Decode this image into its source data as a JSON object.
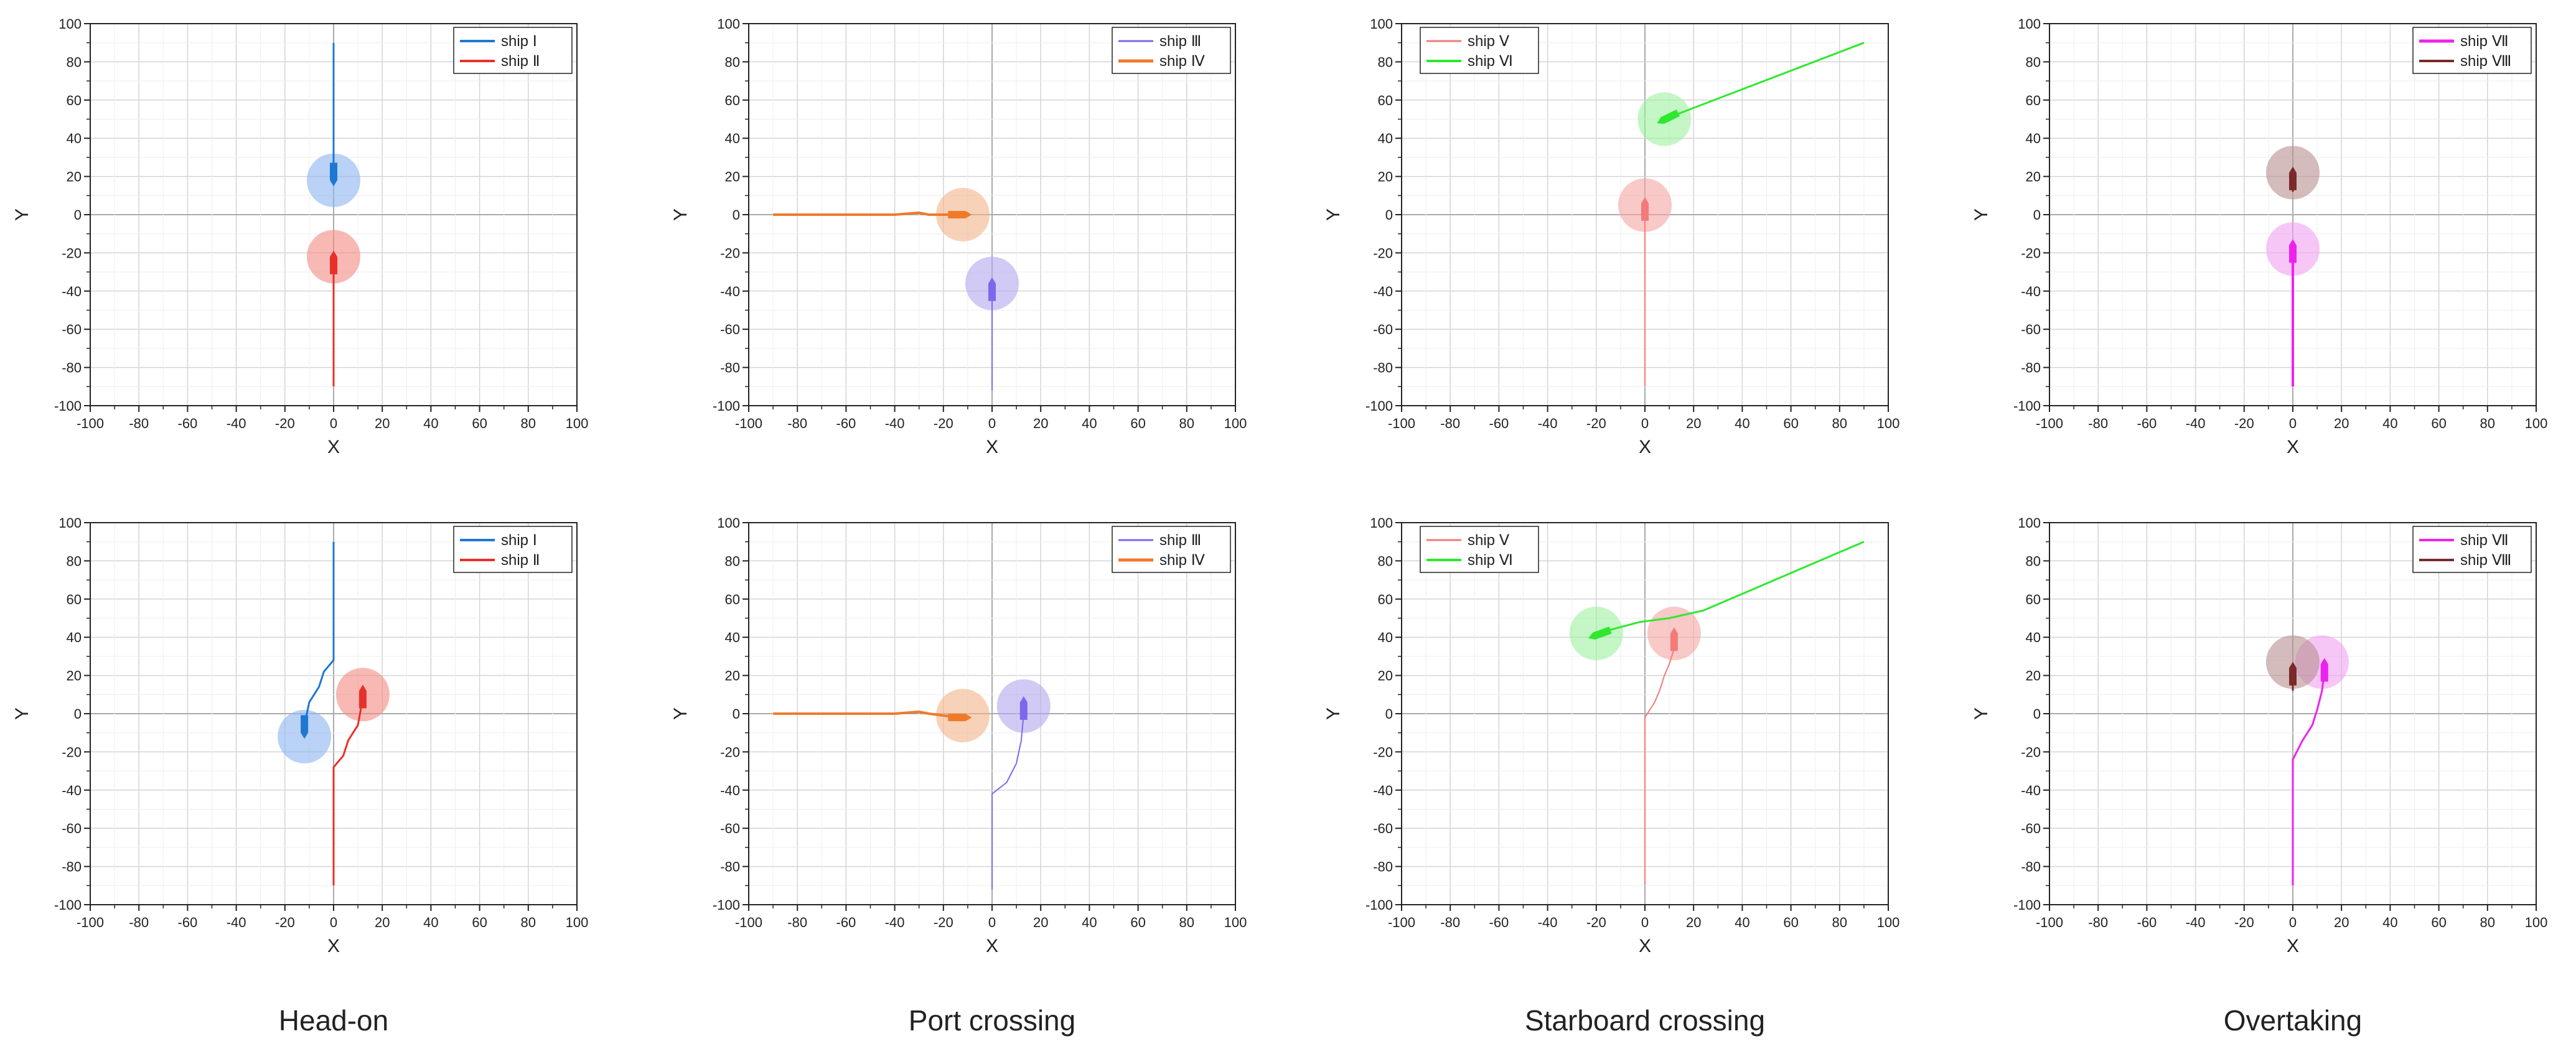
{
  "figure": {
    "captions": [
      "Head-on",
      "Port crossing",
      "Starboard crossing",
      "Overtaking"
    ]
  },
  "chart_data": [
    {
      "type": "line",
      "scenario": "Head-on",
      "xlabel": "X",
      "ylabel": "Y",
      "ylabel_display": "Y",
      "xlim": [
        -100,
        100
      ],
      "ylim": [
        -100,
        100
      ],
      "xticks": [
        -100,
        -80,
        -60,
        -40,
        -20,
        0,
        20,
        40,
        60,
        80,
        100
      ],
      "yticks": [
        -100,
        -80,
        -60,
        -40,
        -20,
        0,
        20,
        40,
        60,
        80,
        100
      ],
      "grid": true,
      "legend": "top-right",
      "series": [
        {
          "name": "ship Ⅰ",
          "color": "#1f77d4",
          "width": 3,
          "points": [
            [
              0,
              90
            ],
            [
              0,
              22
            ]
          ],
          "ship": {
            "x": 0,
            "y": 22,
            "heading": 180,
            "circle_color": "#8ab4f0"
          },
          "circle": {
            "x": 0,
            "y": 18,
            "r": 11
          }
        },
        {
          "name": "ship Ⅱ",
          "color": "#e8302a",
          "width": 3,
          "points": [
            [
              0,
              -90
            ],
            [
              0,
              -26
            ]
          ],
          "ship": {
            "x": 0,
            "y": -26,
            "heading": 0,
            "circle_color": "#f48a84"
          },
          "circle": {
            "x": 0,
            "y": -22,
            "r": 11
          }
        }
      ]
    },
    {
      "type": "line",
      "scenario": "Port crossing",
      "xlabel": "X",
      "ylabel": "Y",
      "ylabel_display": "Y",
      "xlim": [
        -100,
        100
      ],
      "ylim": [
        -100,
        100
      ],
      "xticks": [
        -100,
        -80,
        -60,
        -40,
        -20,
        0,
        20,
        40,
        60,
        80,
        100
      ],
      "yticks": [
        -100,
        -80,
        -60,
        -40,
        -20,
        0,
        20,
        40,
        60,
        80,
        100
      ],
      "grid": true,
      "legend": "top-right",
      "series": [
        {
          "name": "ship Ⅲ",
          "color": "#7b68ee",
          "width": 2,
          "points": [
            [
              0,
              -92
            ],
            [
              0,
              -40
            ]
          ],
          "ship": {
            "x": 0,
            "y": -40,
            "heading": 0,
            "circle_color": "#b3a6ec"
          },
          "circle": {
            "x": 0,
            "y": -36,
            "r": 11
          }
        },
        {
          "name": "ship Ⅳ",
          "color": "#f07a2c",
          "width": 4,
          "points": [
            [
              -90,
              0
            ],
            [
              -40,
              0
            ],
            [
              -30,
              1
            ],
            [
              -26,
              0
            ],
            [
              -14,
              0
            ]
          ],
          "ship": {
            "x": -14,
            "y": 0,
            "heading": 90,
            "circle_color": "#f2b48a"
          },
          "circle": {
            "x": -12,
            "y": 0,
            "r": 11
          }
        }
      ]
    },
    {
      "type": "line",
      "scenario": "Starboard crossing",
      "xlabel": "X",
      "ylabel": "Y",
      "ylabel_display": "Y",
      "xlim": [
        -100,
        100
      ],
      "ylim": [
        -100,
        100
      ],
      "xticks": [
        -100,
        -80,
        -60,
        -40,
        -20,
        0,
        20,
        40,
        60,
        80,
        100
      ],
      "yticks": [
        -100,
        -80,
        -60,
        -40,
        -20,
        0,
        20,
        40,
        60,
        80,
        100
      ],
      "grid": true,
      "legend": "top-left",
      "series": [
        {
          "name": "ship Ⅴ",
          "color": "#f27a7a",
          "width": 2,
          "points": [
            [
              0,
              -90
            ],
            [
              0,
              2
            ]
          ],
          "ship": {
            "x": 0,
            "y": 2,
            "heading": 0,
            "circle_color": "#f4a5a0"
          },
          "circle": {
            "x": 0,
            "y": 5,
            "r": 11
          }
        },
        {
          "name": "ship Ⅵ",
          "color": "#2ee82e",
          "width": 3,
          "points": [
            [
              90,
              90
            ],
            [
              10,
              51
            ]
          ],
          "ship": {
            "x": 10,
            "y": 51,
            "heading": -116,
            "circle_color": "#9ef09e"
          },
          "circle": {
            "x": 8,
            "y": 50,
            "r": 11
          }
        }
      ]
    },
    {
      "type": "line",
      "scenario": "Overtaking",
      "xlabel": "X",
      "ylabel": "Y",
      "ylabel_display": "Y",
      "xlim": [
        -100,
        100
      ],
      "ylim": [
        -100,
        100
      ],
      "xticks": [
        -100,
        -80,
        -60,
        -40,
        -20,
        0,
        20,
        40,
        60,
        80,
        100
      ],
      "yticks": [
        -100,
        -80,
        -60,
        -40,
        -20,
        0,
        20,
        40,
        60,
        80,
        100
      ],
      "grid": true,
      "legend": "top-right",
      "series": [
        {
          "name": "ship Ⅶ",
          "color": "#ee22ee",
          "width": 4,
          "points": [
            [
              0,
              -90
            ],
            [
              0,
              -20
            ]
          ],
          "ship": {
            "x": 0,
            "y": -20,
            "heading": 0,
            "circle_color": "#f0a0f0"
          },
          "circle": {
            "x": 0,
            "y": -18,
            "r": 11
          }
        },
        {
          "name": "ship Ⅷ",
          "color": "#7a2a2a",
          "width": 3,
          "points": [
            [
              0,
              12
            ],
            [
              0,
              20
            ]
          ],
          "ship": {
            "x": 0,
            "y": 18,
            "heading": 0,
            "circle_color": "#b89090"
          },
          "circle": {
            "x": 0,
            "y": 22,
            "r": 11
          }
        }
      ]
    },
    {
      "type": "line",
      "scenario": "Head-on",
      "xlabel": "X",
      "ylabel": "Y",
      "ylabel_display": "Y",
      "xlim": [
        -100,
        100
      ],
      "ylim": [
        -100,
        100
      ],
      "xticks": [
        -100,
        -80,
        -60,
        -40,
        -20,
        0,
        20,
        40,
        60,
        80,
        100
      ],
      "yticks": [
        -100,
        -80,
        -60,
        -40,
        -20,
        0,
        20,
        40,
        60,
        80,
        100
      ],
      "grid": true,
      "legend": "top-right",
      "series": [
        {
          "name": "ship Ⅰ",
          "color": "#1f77d4",
          "width": 3,
          "points": [
            [
              0,
              90
            ],
            [
              0,
              28
            ],
            [
              -4,
              22
            ],
            [
              -6,
              14
            ],
            [
              -8,
              10
            ],
            [
              -10,
              6
            ],
            [
              -12,
              -6
            ]
          ],
          "ship": {
            "x": -12,
            "y": -6,
            "heading": 180,
            "circle_color": "#8ab4f0"
          },
          "circle": {
            "x": -12,
            "y": -12,
            "r": 11
          }
        },
        {
          "name": "ship Ⅱ",
          "color": "#e8302a",
          "width": 3,
          "points": [
            [
              0,
              -90
            ],
            [
              0,
              -28
            ],
            [
              4,
              -22
            ],
            [
              6,
              -14
            ],
            [
              8,
              -10
            ],
            [
              10,
              -6
            ],
            [
              12,
              8
            ]
          ],
          "ship": {
            "x": 12,
            "y": 8,
            "heading": 0,
            "circle_color": "#f48a84"
          },
          "circle": {
            "x": 12,
            "y": 10,
            "r": 11
          }
        }
      ]
    },
    {
      "type": "line",
      "scenario": "Port crossing",
      "xlabel": "X",
      "ylabel": "Y",
      "ylabel_display": "Y",
      "xlim": [
        -100,
        100
      ],
      "ylim": [
        -100,
        100
      ],
      "xticks": [
        -100,
        -80,
        -60,
        -40,
        -20,
        0,
        20,
        40,
        60,
        80,
        100
      ],
      "yticks": [
        -100,
        -80,
        -60,
        -40,
        -20,
        0,
        20,
        40,
        60,
        80,
        100
      ],
      "grid": true,
      "legend": "top-right",
      "series": [
        {
          "name": "ship Ⅲ",
          "color": "#7b68ee",
          "width": 2,
          "points": [
            [
              0,
              -92
            ],
            [
              0,
              -42
            ],
            [
              6,
              -36
            ],
            [
              10,
              -26
            ],
            [
              12,
              -14
            ],
            [
              13,
              0
            ],
            [
              13,
              4
            ]
          ],
          "ship": {
            "x": 13,
            "y": 2,
            "heading": 0,
            "circle_color": "#b3a6ec"
          },
          "circle": {
            "x": 13,
            "y": 4,
            "r": 11
          }
        },
        {
          "name": "ship Ⅳ",
          "color": "#f07a2c",
          "width": 4,
          "points": [
            [
              -90,
              0
            ],
            [
              -40,
              0
            ],
            [
              -30,
              1
            ],
            [
              -26,
              0
            ],
            [
              -14,
              -2
            ]
          ],
          "ship": {
            "x": -14,
            "y": -2,
            "heading": 90,
            "circle_color": "#f2b48a"
          },
          "circle": {
            "x": -12,
            "y": -1,
            "r": 11
          }
        }
      ]
    },
    {
      "type": "line",
      "scenario": "Starboard crossing",
      "xlabel": "X",
      "ylabel": "Y",
      "ylabel_display": "Y",
      "xlim": [
        -100,
        100
      ],
      "ylim": [
        -100,
        100
      ],
      "xticks": [
        -100,
        -80,
        -60,
        -40,
        -20,
        0,
        20,
        40,
        60,
        80,
        100
      ],
      "yticks": [
        -100,
        -80,
        -60,
        -40,
        -20,
        0,
        20,
        40,
        60,
        80,
        100
      ],
      "grid": true,
      "legend": "top-left",
      "series": [
        {
          "name": "ship Ⅴ",
          "color": "#f27a7a",
          "width": 2,
          "points": [
            [
              0,
              -90
            ],
            [
              0,
              -2
            ],
            [
              4,
              6
            ],
            [
              6,
              12
            ],
            [
              8,
              20
            ],
            [
              10,
              26
            ],
            [
              12,
              34
            ],
            [
              12,
              40
            ]
          ],
          "ship": {
            "x": 12,
            "y": 38,
            "heading": 0,
            "circle_color": "#f4a5a0"
          },
          "circle": {
            "x": 12,
            "y": 42,
            "r": 11
          }
        },
        {
          "name": "ship Ⅵ",
          "color": "#2ee82e",
          "width": 3,
          "points": [
            [
              90,
              90
            ],
            [
              24,
              54
            ],
            [
              10,
              50
            ],
            [
              -2,
              48
            ],
            [
              -14,
              44
            ],
            [
              -18,
              42
            ]
          ],
          "ship": {
            "x": -18,
            "y": 42,
            "heading": -110,
            "circle_color": "#9ef09e"
          },
          "circle": {
            "x": -20,
            "y": 42,
            "r": 11
          }
        }
      ]
    },
    {
      "type": "line",
      "scenario": "Overtaking",
      "xlabel": "X",
      "ylabel": "Y",
      "ylabel_display": "Y",
      "xlim": [
        -100,
        100
      ],
      "ylim": [
        -100,
        100
      ],
      "xticks": [
        -100,
        -80,
        -60,
        -40,
        -20,
        0,
        20,
        40,
        60,
        80,
        100
      ],
      "yticks": [
        -100,
        -80,
        -60,
        -40,
        -20,
        0,
        20,
        40,
        60,
        80,
        100
      ],
      "grid": true,
      "legend": "top-right",
      "series": [
        {
          "name": "ship Ⅶ",
          "color": "#ee22ee",
          "width": 3,
          "points": [
            [
              0,
              -90
            ],
            [
              0,
              -24
            ],
            [
              4,
              -14
            ],
            [
              8,
              -6
            ],
            [
              10,
              2
            ],
            [
              12,
              12
            ],
            [
              13,
              22
            ]
          ],
          "ship": {
            "x": 13,
            "y": 22,
            "heading": 0,
            "circle_color": "#f0a0f0"
          },
          "circle": {
            "x": 12,
            "y": 27,
            "r": 11
          }
        },
        {
          "name": "ship Ⅷ",
          "color": "#7a2a2a",
          "width": 3,
          "points": [
            [
              0,
              12
            ],
            [
              0,
              24
            ]
          ],
          "ship": {
            "x": 0,
            "y": 20,
            "heading": 0,
            "circle_color": "#b89090"
          },
          "circle": {
            "x": 0,
            "y": 27,
            "r": 11
          }
        }
      ]
    }
  ]
}
